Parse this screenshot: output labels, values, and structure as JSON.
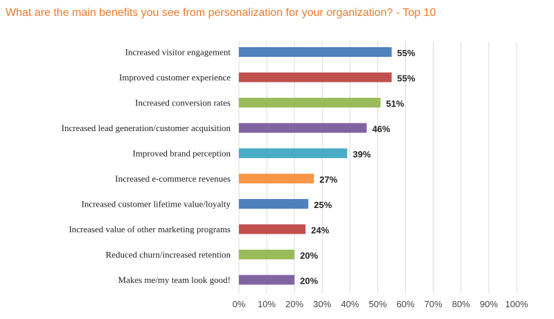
{
  "chart_data": {
    "type": "bar",
    "orientation": "horizontal",
    "title": "What are the main benefits you see from personalization for your organization? - Top 10",
    "categories": [
      "Increased visitor engagement",
      "Improved customer experience",
      "Increased conversion rates",
      "Increased lead generation/customer acquisition",
      "Improved brand perception",
      "Increased e-commerce revenues",
      "Increased customer lifetime value/loyalty",
      "Increased value of other marketing programs",
      "Reduced churn/increased retention",
      "Makes me/my team look good!"
    ],
    "values": [
      55,
      55,
      51,
      46,
      39,
      27,
      25,
      24,
      20,
      20
    ],
    "value_labels": [
      "55%",
      "55%",
      "51%",
      "46%",
      "39%",
      "27%",
      "25%",
      "24%",
      "20%",
      "20%"
    ],
    "colors": [
      "#4f81bd",
      "#c0504d",
      "#9bbb59",
      "#8064a2",
      "#4bacc6",
      "#f79646",
      "#4f81bd",
      "#c0504d",
      "#9bbb59",
      "#8064a2"
    ],
    "xlim": [
      0,
      100
    ],
    "xticks": [
      0,
      10,
      20,
      30,
      40,
      50,
      60,
      70,
      80,
      90,
      100
    ],
    "xtick_labels": [
      "0%",
      "10%",
      "20%",
      "30%",
      "40%",
      "50%",
      "60%",
      "70%",
      "80%",
      "90%",
      "100%"
    ],
    "grid": true,
    "title_color": "#e8782a"
  }
}
